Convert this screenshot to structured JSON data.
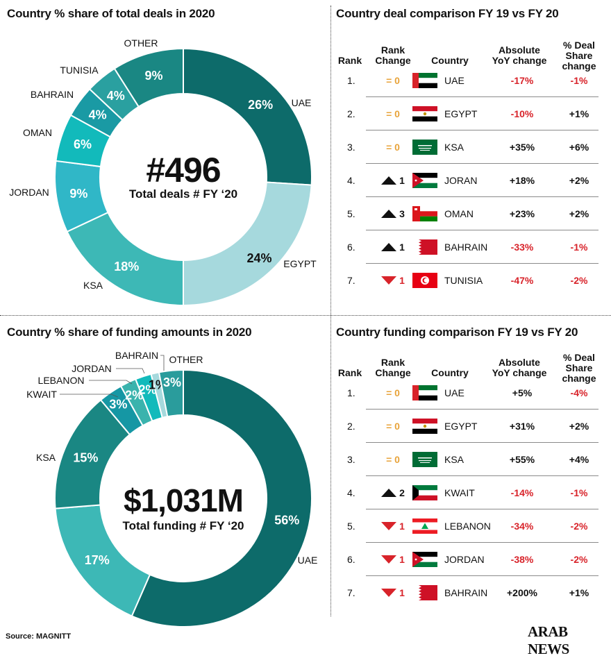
{
  "colors": {
    "accent_red": "#d8232a",
    "accent_orange": "#e8a33a"
  },
  "chart_data": [
    {
      "type": "pie",
      "title": "Country % share of total deals in 2020",
      "center_value": "#496",
      "center_label": "Total deals # FY ‘20",
      "slices": [
        {
          "label": "UAE",
          "value": 26,
          "value_label": "26%",
          "color": "#0d6b6a"
        },
        {
          "label": "EGYPT",
          "value": 24,
          "value_label": "24%",
          "color": "#a6d9dd"
        },
        {
          "label": "KSA",
          "value": 18,
          "value_label": "18%",
          "color": "#3db8b6"
        },
        {
          "label": "JORDAN",
          "value": 9,
          "value_label": "9%",
          "color": "#30b7c7"
        },
        {
          "label": "OMAN",
          "value": 6,
          "value_label": "6%",
          "color": "#12babb"
        },
        {
          "label": "BAHRAIN",
          "value": 4,
          "value_label": "4%",
          "color": "#1a9aa4"
        },
        {
          "label": "TUNISIA",
          "value": 4,
          "value_label": "4%",
          "color": "#2aa0a0"
        },
        {
          "label": "OTHER",
          "value": 9,
          "value_label": "9%",
          "color": "#1a8783"
        }
      ]
    },
    {
      "type": "pie",
      "title": "Country % share of funding amounts in 2020",
      "center_value": "$1,031M",
      "center_label": "Total funding # FY ‘20",
      "slices": [
        {
          "label": "UAE",
          "value": 56,
          "value_label": "56%",
          "color": "#0d6b6a"
        },
        {
          "label": "",
          "value": 17,
          "value_label": "17%",
          "color": "#3db8b6"
        },
        {
          "label": "KSA",
          "value": 15,
          "value_label": "15%",
          "color": "#1a8783"
        },
        {
          "label": "KWAIT",
          "value": 3,
          "value_label": "3%",
          "color": "#1597a4"
        },
        {
          "label": "LEBANON",
          "value": 2,
          "value_label": "2%",
          "color": "#3ab3ad"
        },
        {
          "label": "JORDAN",
          "value": 2,
          "value_label": "2%",
          "color": "#12babb"
        },
        {
          "label": "BAHRAIN",
          "value": 1,
          "value_label": "1%",
          "color": "#a6d9dd"
        },
        {
          "label": "OTHER",
          "value": 3,
          "value_label": "3%",
          "color": "#2a9c9c"
        }
      ]
    }
  ],
  "deals_table": {
    "title": "Country deal comparison FY 19 vs FY 20",
    "headers": {
      "rank": "Rank",
      "rank_change": "Rank\nChange",
      "country": "Country",
      "abs": "Absolute\nYoY change",
      "share": "% Deal\nShare\nchange"
    },
    "rows": [
      {
        "rank": "1.",
        "change": "= 0",
        "dir": "eq",
        "flag": "uae",
        "country": "UAE",
        "abs": "-17%",
        "share": "-1%"
      },
      {
        "rank": "2.",
        "change": "= 0",
        "dir": "eq",
        "flag": "egypt",
        "country": "EGYPT",
        "abs": "-10%",
        "share": "+1%"
      },
      {
        "rank": "3.",
        "change": "= 0",
        "dir": "eq",
        "flag": "ksa",
        "country": "KSA",
        "abs": "+35%",
        "share": "+6%"
      },
      {
        "rank": "4.",
        "change": "1",
        "dir": "up",
        "flag": "jordan",
        "country": "JORAN",
        "abs": "+18%",
        "share": "+2%"
      },
      {
        "rank": "5.",
        "change": "3",
        "dir": "up",
        "flag": "oman",
        "country": "OMAN",
        "abs": "+23%",
        "share": "+2%"
      },
      {
        "rank": "6.",
        "change": "1",
        "dir": "up",
        "flag": "bahrain",
        "country": "BAHRAIN",
        "abs": "-33%",
        "share": "-1%"
      },
      {
        "rank": "7.",
        "change": "1",
        "dir": "down",
        "flag": "tunisia",
        "country": "TUNISIA",
        "abs": "-47%",
        "share": "-2%"
      }
    ]
  },
  "funding_table": {
    "title": "Country funding comparison FY 19 vs FY 20",
    "headers": {
      "rank": "Rank",
      "rank_change": "Rank\nChange",
      "country": "Country",
      "abs": "Absolute\nYoY change",
      "share": "% Deal\nShare\nchange"
    },
    "rows": [
      {
        "rank": "1.",
        "change": "= 0",
        "dir": "eq",
        "flag": "uae",
        "country": "UAE",
        "abs": "+5%",
        "share": "-4%"
      },
      {
        "rank": "2.",
        "change": "= 0",
        "dir": "eq",
        "flag": "egypt",
        "country": "EGYPT",
        "abs": "+31%",
        "share": "+2%"
      },
      {
        "rank": "3.",
        "change": "= 0",
        "dir": "eq",
        "flag": "ksa",
        "country": "KSA",
        "abs": "+55%",
        "share": "+4%"
      },
      {
        "rank": "4.",
        "change": "2",
        "dir": "up",
        "flag": "kuwait",
        "country": "KWAIT",
        "abs": "-14%",
        "share": "-1%"
      },
      {
        "rank": "5.",
        "change": "1",
        "dir": "down",
        "flag": "lebanon",
        "country": "LEBANON",
        "abs": "-34%",
        "share": "-2%"
      },
      {
        "rank": "6.",
        "change": "1",
        "dir": "down",
        "flag": "jordan",
        "country": "JORDAN",
        "abs": "-38%",
        "share": "-2%"
      },
      {
        "rank": "7.",
        "change": "1",
        "dir": "down",
        "flag": "bahrain",
        "country": "BAHRAIN",
        "abs": "+200%",
        "share": "+1%"
      }
    ]
  },
  "footer": {
    "source": "Source: MAGNITT",
    "logo": "ARAB NEWS"
  }
}
